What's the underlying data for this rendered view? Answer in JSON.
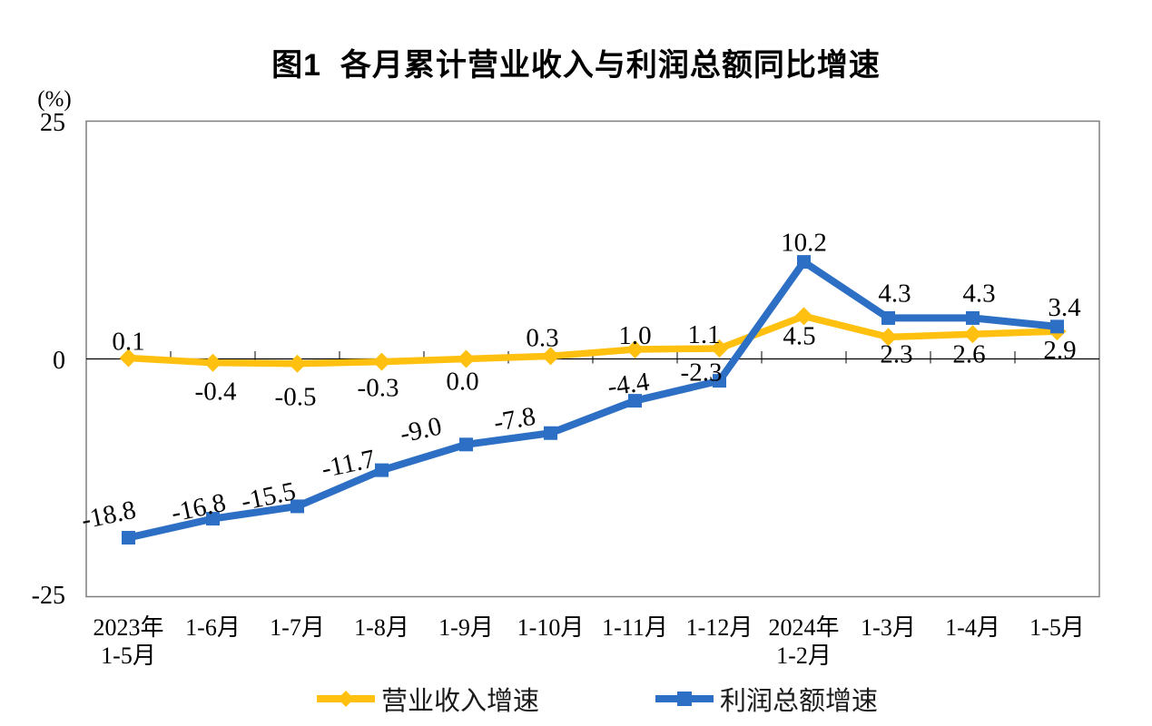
{
  "chart_data": {
    "type": "line",
    "title": "图1  各月累计营业收入与利润总额同比增速",
    "unit_label": "(%)",
    "categories": [
      "2023年\n1-5月",
      "1-6月",
      "1-7月",
      "1-8月",
      "1-9月",
      "1-10月",
      "1-11月",
      "1-12月",
      "2024年\n1-2月",
      "1-3月",
      "1-4月",
      "1-5月"
    ],
    "series": [
      {
        "name": "营业收入增速",
        "marker": "diamond",
        "color": "#FFC010",
        "values": [
          0.1,
          -0.4,
          -0.5,
          -0.3,
          0.0,
          0.3,
          1.0,
          1.1,
          4.5,
          2.3,
          2.6,
          2.9
        ]
      },
      {
        "name": "利润总额增速",
        "marker": "square",
        "color": "#2D6FC4",
        "values": [
          -18.8,
          -16.8,
          -15.5,
          -11.7,
          -9.0,
          -7.8,
          -4.4,
          -2.3,
          10.2,
          4.3,
          4.3,
          3.4
        ]
      }
    ],
    "ylim": [
      -25,
      25
    ],
    "yticks": [
      25,
      0,
      -25
    ],
    "grid": false,
    "legend_position": "bottom",
    "frame_color": "#7F7F7F",
    "zero_line_color": "#000000",
    "text_color": "#000000"
  }
}
